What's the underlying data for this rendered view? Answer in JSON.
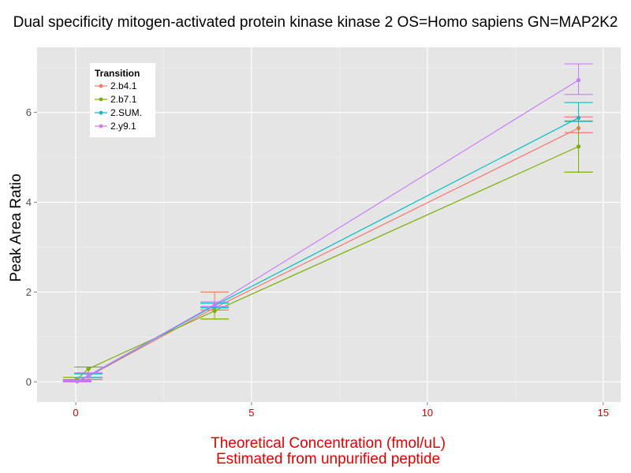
{
  "chart_data": {
    "type": "line",
    "title": "Dual specificity mitogen-activated protein kinase kinase 2 OS=Homo sapiens GN=MAP2K2",
    "xlabel_line1": "Theoretical Concentration (fmol/uL)",
    "xlabel_line2": "Estimated from unpurified peptide",
    "ylabel": "Peak Area Ratio",
    "xlim": [
      -1.1,
      15.5
    ],
    "ylim": [
      -0.45,
      7.45
    ],
    "x_ticks": [
      0,
      5,
      10,
      15
    ],
    "x_tick_labels": [
      "0",
      "5",
      "10",
      "15"
    ],
    "y_ticks": [
      0,
      2,
      4,
      6
    ],
    "y_tick_labels": [
      "0",
      "2",
      "4",
      "6"
    ],
    "grid": true,
    "legend_position": "top-left",
    "legend_title": "Transition",
    "series": [
      {
        "name": "2.b4.1",
        "color": "#F8766D",
        "x": [
          0.04,
          0.36,
          3.95,
          14.3
        ],
        "y": [
          0.02,
          0.12,
          1.65,
          5.65
        ],
        "err_low": [
          0.0,
          0.05,
          1.6,
          5.55
        ],
        "err_high": [
          0.05,
          0.18,
          2.0,
          5.9
        ]
      },
      {
        "name": "2.b7.1",
        "color": "#7CAE00",
        "x": [
          0.04,
          0.36,
          3.95,
          14.3
        ],
        "y": [
          0.06,
          0.29,
          1.58,
          5.24
        ],
        "err_low": [
          0.02,
          0.1,
          1.4,
          4.67
        ],
        "err_high": [
          0.1,
          0.33,
          1.65,
          5.81
        ]
      },
      {
        "name": "2.SUM.",
        "color": "#00BFC4",
        "x": [
          0.04,
          0.36,
          3.95,
          14.3
        ],
        "y": [
          0.01,
          0.13,
          1.7,
          5.88
        ],
        "err_low": [
          0.0,
          0.1,
          1.65,
          5.8
        ],
        "err_high": [
          0.04,
          0.18,
          1.75,
          6.22
        ]
      },
      {
        "name": "2.y9.1",
        "color": "#C77CFF",
        "x": [
          0.04,
          0.36,
          3.95,
          14.3
        ],
        "y": [
          0.01,
          0.14,
          1.72,
          6.72
        ],
        "err_low": [
          0.0,
          0.09,
          1.68,
          6.4
        ],
        "err_high": [
          0.03,
          0.2,
          1.78,
          7.08
        ]
      }
    ]
  }
}
